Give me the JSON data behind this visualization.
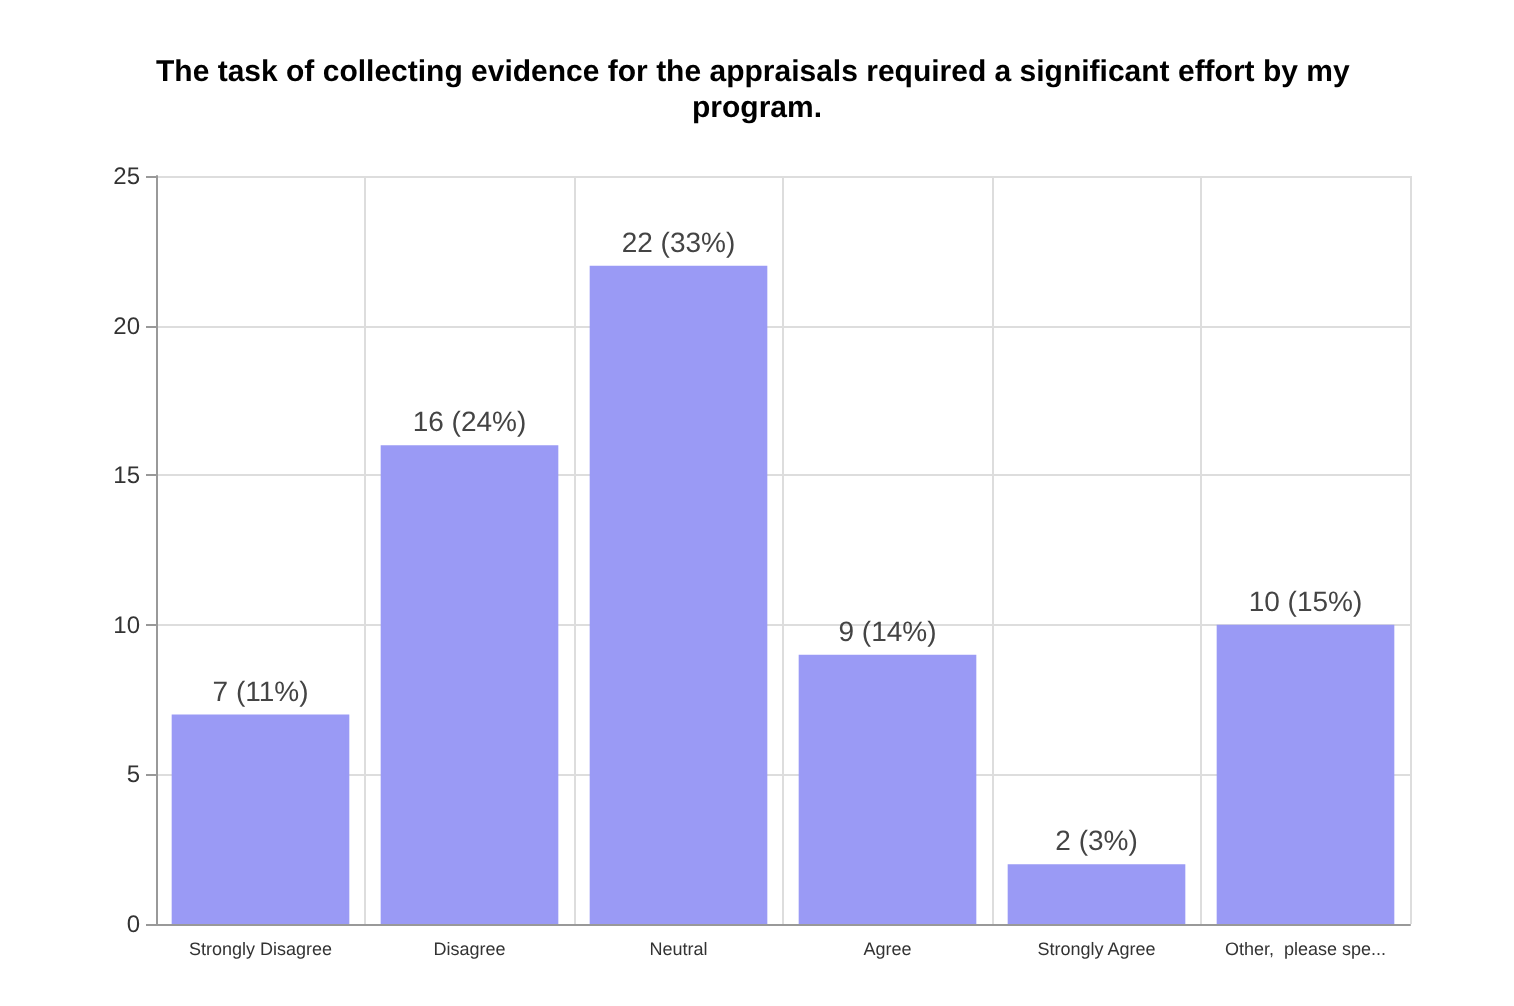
{
  "chart_data": {
    "type": "bar",
    "title": "The task of collecting evidence for the appraisals required a significant effort by my program.",
    "categories": [
      "Strongly Disagree",
      "Disagree",
      "Neutral",
      "Agree",
      "Strongly Agree",
      "Other,  please spe..."
    ],
    "values": [
      7,
      16,
      22,
      9,
      2,
      10
    ],
    "value_labels": [
      "7 (11%)",
      "16 (24%)",
      "22 (33%)",
      "9 (14%)",
      "2 (3%)",
      "10 (15%)"
    ],
    "color": "#9a9af5",
    "ylim": [
      0,
      25
    ],
    "yticks": [
      0,
      5,
      10,
      15,
      20,
      25
    ],
    "grid": true
  }
}
